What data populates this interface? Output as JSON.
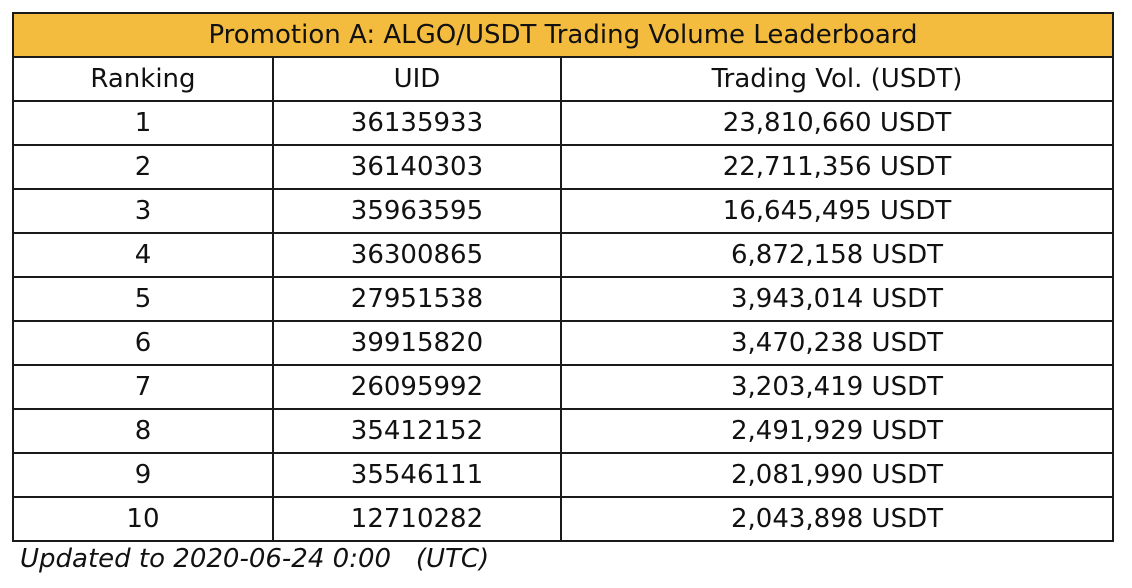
{
  "table": {
    "title": "Promotion A: ALGO/USDT Trading Volume Leaderboard",
    "headers": [
      "Ranking",
      "UID",
      "Trading Vol. (USDT)"
    ],
    "rows": [
      [
        "1",
        "36135933",
        "23,810,660 USDT"
      ],
      [
        "2",
        "36140303",
        "22,711,356 USDT"
      ],
      [
        "3",
        "35963595",
        "16,645,495 USDT"
      ],
      [
        "4",
        "36300865",
        "6,872,158 USDT"
      ],
      [
        "5",
        "27951538",
        "3,943,014 USDT"
      ],
      [
        "6",
        "39915820",
        "3,470,238 USDT"
      ],
      [
        "7",
        "26095992",
        "3,203,419 USDT"
      ],
      [
        "8",
        "35412152",
        "2,491,929 USDT"
      ],
      [
        "9",
        "35546111",
        "2,081,990 USDT"
      ],
      [
        "10",
        "12710282",
        "2,043,898 USDT"
      ]
    ]
  },
  "footnote": "Updated to 2020-06-24 0:00   (UTC)",
  "colors": {
    "title_background": "#f3bc3e",
    "border": "#1a1a1a"
  }
}
